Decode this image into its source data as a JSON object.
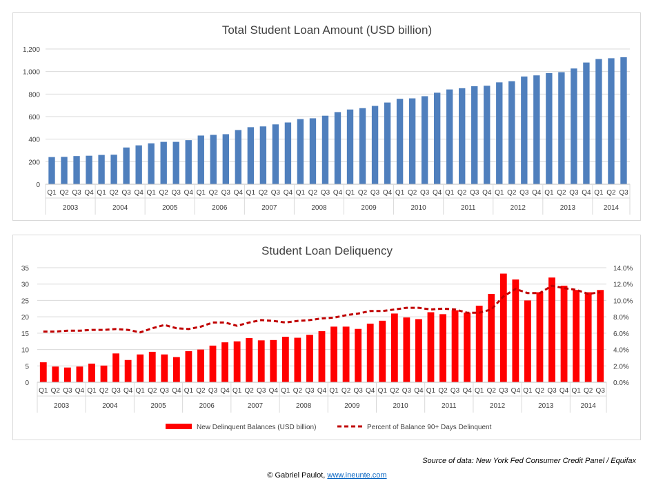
{
  "chart_data": [
    {
      "type": "bar",
      "title": "Total Student Loan Amount (USD billion)",
      "quarters": [
        "Q1",
        "Q2",
        "Q3",
        "Q4"
      ],
      "years": [
        "2003",
        "2004",
        "2005",
        "2006",
        "2007",
        "2008",
        "2009",
        "2010",
        "2011",
        "2012",
        "2013",
        "2014"
      ],
      "categories": [
        "2003 Q1",
        "2003 Q2",
        "2003 Q3",
        "2003 Q4",
        "2004 Q1",
        "2004 Q2",
        "2004 Q3",
        "2004 Q4",
        "2005 Q1",
        "2005 Q2",
        "2005 Q3",
        "2005 Q4",
        "2006 Q1",
        "2006 Q2",
        "2006 Q3",
        "2006 Q4",
        "2007 Q1",
        "2007 Q2",
        "2007 Q3",
        "2007 Q4",
        "2008 Q1",
        "2008 Q2",
        "2008 Q3",
        "2008 Q4",
        "2009 Q1",
        "2009 Q2",
        "2009 Q3",
        "2009 Q4",
        "2010 Q1",
        "2010 Q2",
        "2010 Q3",
        "2010 Q4",
        "2011 Q1",
        "2011 Q2",
        "2011 Q3",
        "2011 Q4",
        "2012 Q1",
        "2012 Q2",
        "2012 Q3",
        "2012 Q4",
        "2013 Q1",
        "2013 Q2",
        "2013 Q3",
        "2013 Q4",
        "2014 Q1",
        "2014 Q2",
        "2014 Q3"
      ],
      "values": [
        241,
        243,
        250,
        253,
        260,
        262,
        326,
        345,
        363,
        376,
        376,
        391,
        432,
        438,
        444,
        481,
        506,
        513,
        531,
        548,
        578,
        585,
        608,
        640,
        663,
        675,
        695,
        725,
        758,
        762,
        781,
        812,
        841,
        852,
        870,
        874,
        904,
        914,
        956,
        966,
        986,
        994,
        1027,
        1080,
        1111,
        1118,
        1127
      ],
      "ylim": [
        0,
        1200
      ],
      "yticks": [
        0,
        200,
        400,
        600,
        800,
        1000,
        1200
      ],
      "ytick_labels": [
        "0",
        "200",
        "400",
        "600",
        "800",
        "1,000",
        "1,200"
      ],
      "bar_color": "#4f7fbd",
      "grid": true
    },
    {
      "type": "bar+line",
      "title": "Student Loan Deliquency",
      "quarters": [
        "Q1",
        "Q2",
        "Q3",
        "Q4"
      ],
      "years": [
        "2003",
        "2004",
        "2005",
        "2006",
        "2007",
        "2008",
        "2009",
        "2010",
        "2011",
        "2012",
        "2013",
        "2014"
      ],
      "series": [
        {
          "name": "New Delinquent Balances (USD billion)",
          "type": "bar",
          "axis": "left",
          "color": "#ff0000",
          "values": [
            6.1,
            4.8,
            4.5,
            4.8,
            5.7,
            5.1,
            8.8,
            6.8,
            8.5,
            9.3,
            8.5,
            7.7,
            9.5,
            10.0,
            11.2,
            12.2,
            12.5,
            13.5,
            12.8,
            12.9,
            13.9,
            13.6,
            14.5,
            15.6,
            17.0,
            17.0,
            16.3,
            17.9,
            18.8,
            21.0,
            19.8,
            19.3,
            21.4,
            20.8,
            22.0,
            21.3,
            23.4,
            27.0,
            33.2,
            31.4,
            25.0,
            27.5,
            32.0,
            29.5,
            28.2,
            27.5,
            28.2
          ]
        },
        {
          "name": "Percent of Balance 90+ Days Delinquent",
          "type": "line",
          "axis": "right",
          "color": "#c00000",
          "dash": true,
          "values": [
            6.2,
            6.2,
            6.3,
            6.3,
            6.4,
            6.4,
            6.5,
            6.4,
            6.1,
            6.6,
            7.0,
            6.6,
            6.5,
            6.8,
            7.3,
            7.3,
            6.9,
            7.3,
            7.6,
            7.5,
            7.3,
            7.5,
            7.6,
            7.8,
            7.9,
            8.2,
            8.4,
            8.7,
            8.7,
            8.9,
            9.1,
            9.1,
            8.9,
            9.0,
            8.9,
            8.5,
            8.5,
            8.9,
            10.5,
            11.4,
            10.9,
            10.9,
            11.8,
            11.5,
            11.3,
            10.8,
            11.0
          ]
        }
      ],
      "ylim_left": [
        0,
        35
      ],
      "yticks_left": [
        0,
        5,
        10,
        15,
        20,
        25,
        30,
        35
      ],
      "ylim_right": [
        0,
        14
      ],
      "yticks_right": [
        0,
        2,
        4,
        6,
        8,
        10,
        12,
        14
      ],
      "ytick_labels_right": [
        "0.0%",
        "2.0%",
        "4.0%",
        "6.0%",
        "8.0%",
        "10.0%",
        "12.0%",
        "14.0%"
      ],
      "legend_position": "bottom",
      "legend": [
        "New Delinquent Balances (USD billion)",
        "Percent of Balance 90+ Days Delinquent"
      ]
    }
  ],
  "footer": {
    "source": "Source of data: New York Fed Consumer Credit Panel / Equifax",
    "credit_prefix": "© Gabriel Paulot, ",
    "credit_link": "www.ineunte.com"
  }
}
